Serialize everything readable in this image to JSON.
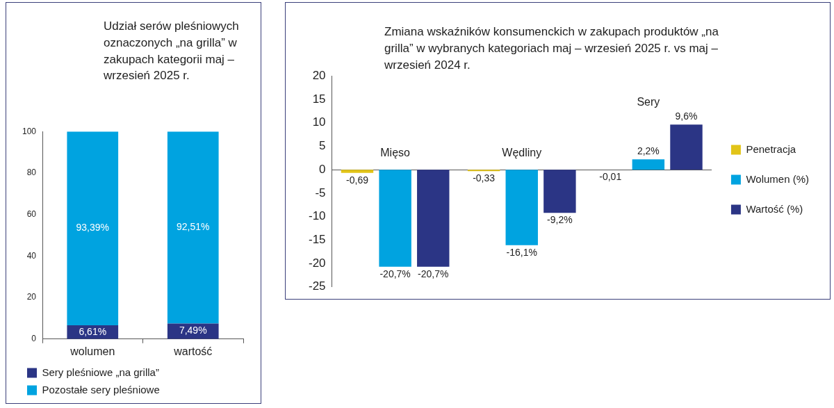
{
  "chart_data": [
    {
      "type": "bar",
      "title": "Udział serów pleśniowych oznaczonych „na grilla” w zakupach kategorii maj – wrzesień 2025 r.",
      "categories": [
        "wolumen",
        "wartość"
      ],
      "stacked": true,
      "ylim": [
        0,
        100
      ],
      "yticks": [
        0,
        20,
        40,
        60,
        80,
        100
      ],
      "grid": false,
      "legend": "bottom",
      "series": [
        {
          "name": "Sery pleśniowe „na grilla”",
          "color": "#2b3585",
          "values": [
            6.61,
            7.49
          ],
          "value_labels": [
            "6,61%",
            "7,49%"
          ]
        },
        {
          "name": "Pozostałe sery pleśniowe",
          "color": "#00a3e0",
          "values": [
            93.39,
            92.51
          ],
          "value_labels": [
            "93,39%",
            "92,51%"
          ]
        }
      ]
    },
    {
      "type": "bar",
      "title": "Zmiana wskaźników konsumenckich w zakupach produktów „na grilla” w wybranych kategoriach maj – wrzesień 2025 r. vs maj –  wrzesień 2024 r.",
      "categories": [
        "Mięso",
        "Wędliny",
        "Sery"
      ],
      "ylim": [
        -25,
        20
      ],
      "yticks": [
        -25,
        -20,
        -15,
        -10,
        -5,
        0,
        5,
        10,
        15,
        20
      ],
      "grid": false,
      "legend": "right",
      "series": [
        {
          "name": "Penetracja",
          "color": "#e2c418",
          "values": [
            -0.69,
            -0.33,
            -0.01
          ],
          "value_labels": [
            "-0,69",
            "-0,33",
            "-0,01"
          ]
        },
        {
          "name": "Wolumen (%)",
          "color": "#00a3e0",
          "values": [
            -20.7,
            -16.1,
            2.2
          ],
          "value_labels": [
            "-20,7%",
            "-16,1%",
            "2,2%"
          ]
        },
        {
          "name": "Wartość (%)",
          "color": "#2b3585",
          "values": [
            -20.7,
            -9.2,
            9.6
          ],
          "value_labels": [
            "-20,7%",
            "-9,2%",
            "9,6%"
          ]
        }
      ]
    }
  ]
}
